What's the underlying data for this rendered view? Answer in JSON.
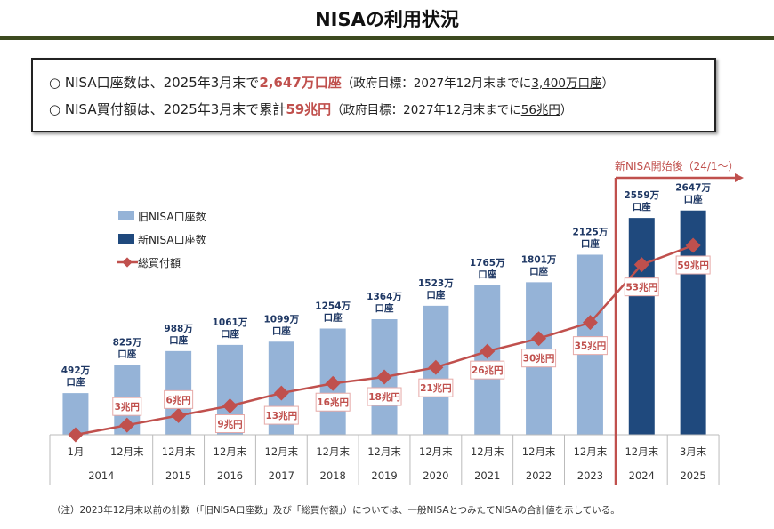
{
  "title": "NISAの利用状況",
  "summary": [
    {
      "bullet": "○",
      "prefix": "NISA口座数は、2025年3月末で",
      "highlight": "2,647万口座",
      "mid": "（政府目標：2027年12月末までに",
      "target": "3,400万口座",
      "suffix": "）"
    },
    {
      "bullet": "○",
      "prefix": "NISA買付額は、2025年3月末で累計",
      "highlight": "59兆円",
      "mid": "（政府目標：2027年12月末までに",
      "target": "56兆円",
      "suffix": "）"
    }
  ],
  "note": "（注）2023年12月末以前の計数（「旧NISA口座数」及び「総買付額」）については、一般NISAとつみたてNISAの合計値を示している。",
  "chart_data": {
    "type": "bar+line",
    "categories": [
      "1月",
      "12月末",
      "12月末",
      "12月末",
      "12月末",
      "12月末",
      "12月末",
      "12月末",
      "12月末",
      "12月末",
      "12月末",
      "12月末",
      "3月末"
    ],
    "year_groups": [
      {
        "label": "2014",
        "span": 2
      },
      {
        "label": "2015",
        "span": 1
      },
      {
        "label": "2016",
        "span": 1
      },
      {
        "label": "2017",
        "span": 1
      },
      {
        "label": "2018",
        "span": 1
      },
      {
        "label": "2019",
        "span": 1
      },
      {
        "label": "2020",
        "span": 1
      },
      {
        "label": "2021",
        "span": 1
      },
      {
        "label": "2022",
        "span": 1
      },
      {
        "label": "2023",
        "span": 1
      },
      {
        "label": "2024",
        "span": 1
      },
      {
        "label": "2025",
        "span": 1
      }
    ],
    "series": [
      {
        "name": "旧NISA口座数",
        "kind": "bar",
        "color": "#95b3d7",
        "unit": "万口座",
        "values": [
          492,
          825,
          988,
          1061,
          1099,
          1254,
          1364,
          1523,
          1765,
          1801,
          2125,
          null,
          null
        ],
        "labels": [
          "492万\n口座",
          "825万\n口座",
          "988万\n口座",
          "1061万\n口座",
          "1099万\n口座",
          "1254万\n口座",
          "1364万\n口座",
          "1523万\n口座",
          "1765万\n口座",
          "1801万\n口座",
          "2125万\n口座",
          "",
          ""
        ]
      },
      {
        "name": "新NISA口座数",
        "kind": "bar",
        "color": "#1f497d",
        "unit": "万口座",
        "values": [
          null,
          null,
          null,
          null,
          null,
          null,
          null,
          null,
          null,
          null,
          null,
          2559,
          2647
        ],
        "labels": [
          "",
          "",
          "",
          "",
          "",
          "",
          "",
          "",
          "",
          "",
          "",
          "2559万\n口座",
          "2647万\n口座"
        ]
      },
      {
        "name": "総買付額",
        "kind": "line",
        "color": "#c0504d",
        "unit": "兆円",
        "values": [
          0,
          3,
          6,
          9,
          13,
          16,
          18,
          21,
          26,
          30,
          35,
          53,
          59
        ],
        "labels": [
          "",
          "3兆円",
          "6兆円",
          "9兆円",
          "13兆円",
          "16兆円",
          "18兆円",
          "21兆円",
          "26兆円",
          "30兆円",
          "35兆円",
          "53兆円",
          "59兆円"
        ]
      }
    ],
    "annotation": "新NISA開始後（24/1～）",
    "legend_position": "top-left",
    "grid": false
  }
}
